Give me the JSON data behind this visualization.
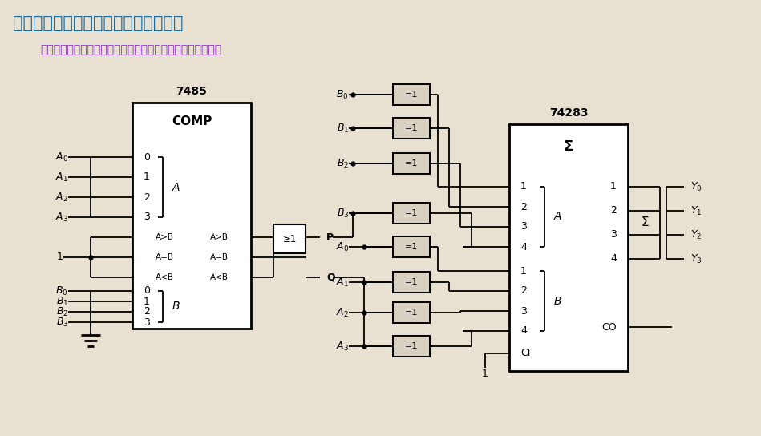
{
  "bg_color": "#e8e0d0",
  "title": "例：设计一个求两数之差绝对值电路。",
  "subtitle": "先将两数比较，对小的数求补，将得到的补码与另一数相加。",
  "title_color": "#1a6ba0",
  "subtitle_color": "#8B2FC9",
  "chip7485_title": "7485",
  "chip7485_inner": "COMP",
  "chip74283_title": "74283",
  "chip74283_inner": "Σ",
  "or_gate": "≥1",
  "xnor": "=1",
  "sigma": "Σ",
  "P": "P",
  "Q": "Q",
  "CI": "CI",
  "CO": "CO",
  "one": "1",
  "comp_left_A": [
    "0",
    "1",
    "2",
    "3"
  ],
  "comp_compare_in": [
    "A>B",
    "A=B",
    "A<B"
  ],
  "comp_compare_out": [
    "A>B",
    "A=B",
    "A<B"
  ],
  "comp_left_B": [
    "0",
    "1",
    "2",
    "3"
  ],
  "adder_A_nums": [
    "1",
    "2",
    "3",
    "4"
  ],
  "adder_B_nums": [
    "1",
    "2",
    "3",
    "4"
  ],
  "adder_out_nums": [
    "1",
    "2",
    "3",
    "4"
  ],
  "top_xnor_labels": [
    "B_0",
    "B_1",
    "B_2",
    "B_3"
  ],
  "bot_xnor_labels": [
    "A_0",
    "A_1",
    "A_2",
    "A_3"
  ],
  "left_A_labels": [
    "A_0",
    "A_1",
    "A_2",
    "A_3"
  ],
  "left_B_labels": [
    "B_0",
    "B_1",
    "B_2",
    "B_3"
  ],
  "out_labels": [
    "Y_0",
    "Y_1",
    "Y_2",
    "Y_3"
  ]
}
